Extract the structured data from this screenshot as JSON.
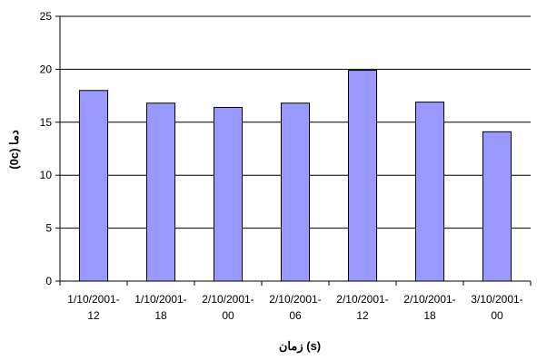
{
  "chart_data": {
    "type": "bar",
    "title": "",
    "xlabel": "زمان (s)",
    "ylabel": "دما (0c)",
    "categories": [
      [
        "1/10/2001-",
        "12"
      ],
      [
        "1/10/2001-",
        "18"
      ],
      [
        "2/10/2001-",
        "00"
      ],
      [
        "2/10/2001-",
        "06"
      ],
      [
        "2/10/2001-",
        "12"
      ],
      [
        "2/10/2001-",
        "18"
      ],
      [
        "3/10/2001-",
        "00"
      ]
    ],
    "values": [
      18,
      16.8,
      16.4,
      16.8,
      19.9,
      16.9,
      14.1
    ],
    "ylim": [
      0,
      25
    ],
    "yticks": [
      0,
      5,
      10,
      15,
      20,
      25
    ],
    "grid": true,
    "legend": "none",
    "colors": {
      "bar_fill": "#9999ff",
      "bar_stroke": "#000000",
      "grid": "#000000"
    }
  }
}
